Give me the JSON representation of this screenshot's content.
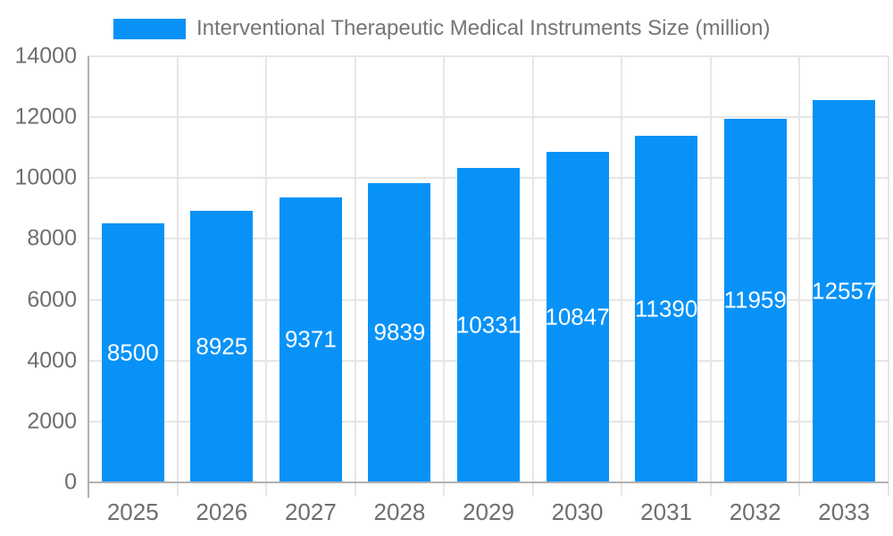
{
  "legend": {
    "label": "Interventional Therapeutic Medical Instruments Size (million)"
  },
  "colors": {
    "bar": "#0892f8",
    "grid": "#e6e6e6",
    "axis": "#b0b0b0",
    "tick_text": "#6e6e6e",
    "legend_text": "#757575",
    "bar_label_text": "#ffffff",
    "background": "#ffffff"
  },
  "chart_data": {
    "type": "bar",
    "title": "Interventional Therapeutic Medical Instruments Size (million)",
    "categories": [
      "2025",
      "2026",
      "2027",
      "2028",
      "2029",
      "2030",
      "2031",
      "2032",
      "2033"
    ],
    "values": [
      8500,
      8925,
      9371,
      9839,
      10331,
      10847,
      11390,
      11959,
      12557
    ],
    "xlabel": "",
    "ylabel": "",
    "ylim": [
      0,
      14000
    ],
    "ytick_step": 2000,
    "ytick_labels": [
      "0",
      "2000",
      "4000",
      "6000",
      "8000",
      "10000",
      "12000",
      "14000"
    ],
    "grid": true,
    "vertical_gridlines": true,
    "legend_position": "top",
    "bar_labels_inside": true
  }
}
